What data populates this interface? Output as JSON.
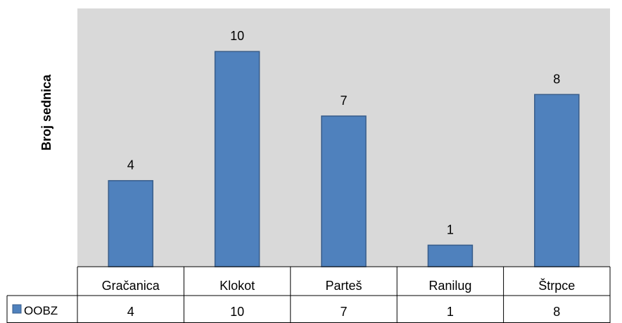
{
  "chart_data": {
    "type": "bar",
    "title": "",
    "xlabel": "",
    "ylabel": "Broj sednica",
    "categories": [
      "Gračanica",
      "Klokot",
      "Parteš",
      "Ranilug",
      "Štrpce"
    ],
    "series": [
      {
        "name": "OOBZ",
        "values": [
          4,
          10,
          7,
          1,
          8
        ],
        "color": "#4F81BD"
      }
    ],
    "ylim": [
      0,
      12
    ],
    "grid": false,
    "data_labels": true,
    "data_table": true,
    "legend": "in-data-table",
    "plot_background": "#D9D9D9",
    "bar_edge_color": "#385D8A"
  }
}
